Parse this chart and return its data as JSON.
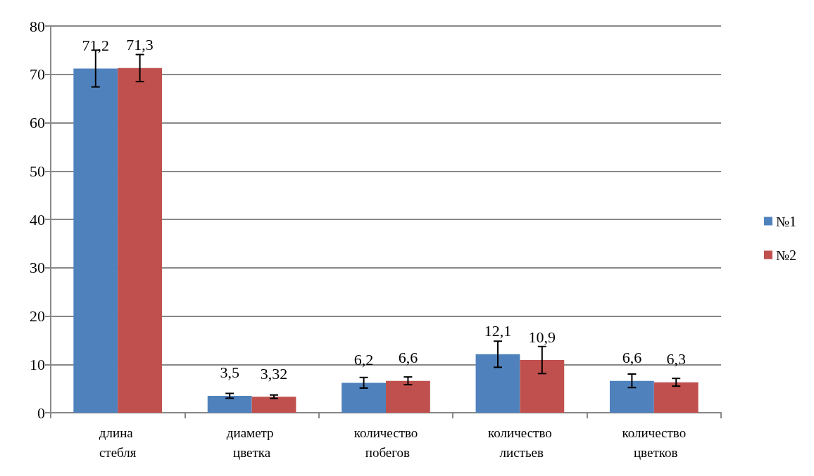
{
  "chart_data": {
    "type": "bar",
    "categories": [
      "длина стебля",
      "диаметр цветка",
      "количество побегов",
      "количество листьев",
      "количество цветков"
    ],
    "series": [
      {
        "name": "№1",
        "color": "#4f81bd",
        "values": [
          71.2,
          3.5,
          6.2,
          12.1,
          6.6
        ],
        "value_labels": [
          "71,2",
          "3,5",
          "6,2",
          "12,1",
          "6,6"
        ],
        "errors": [
          3.8,
          0.5,
          1.1,
          2.7,
          1.4
        ]
      },
      {
        "name": "№2",
        "color": "#c0504d",
        "values": [
          71.3,
          3.32,
          6.6,
          10.9,
          6.3
        ],
        "value_labels": [
          "71,3",
          "3,32",
          "6,6",
          "10,9",
          "6,3"
        ],
        "errors": [
          2.8,
          0.35,
          0.8,
          2.8,
          0.8
        ]
      }
    ],
    "ylim": [
      0,
      80
    ],
    "yticks": [
      0,
      10,
      20,
      30,
      40,
      50,
      60,
      70,
      80
    ],
    "grid": "y",
    "legend": "right"
  }
}
